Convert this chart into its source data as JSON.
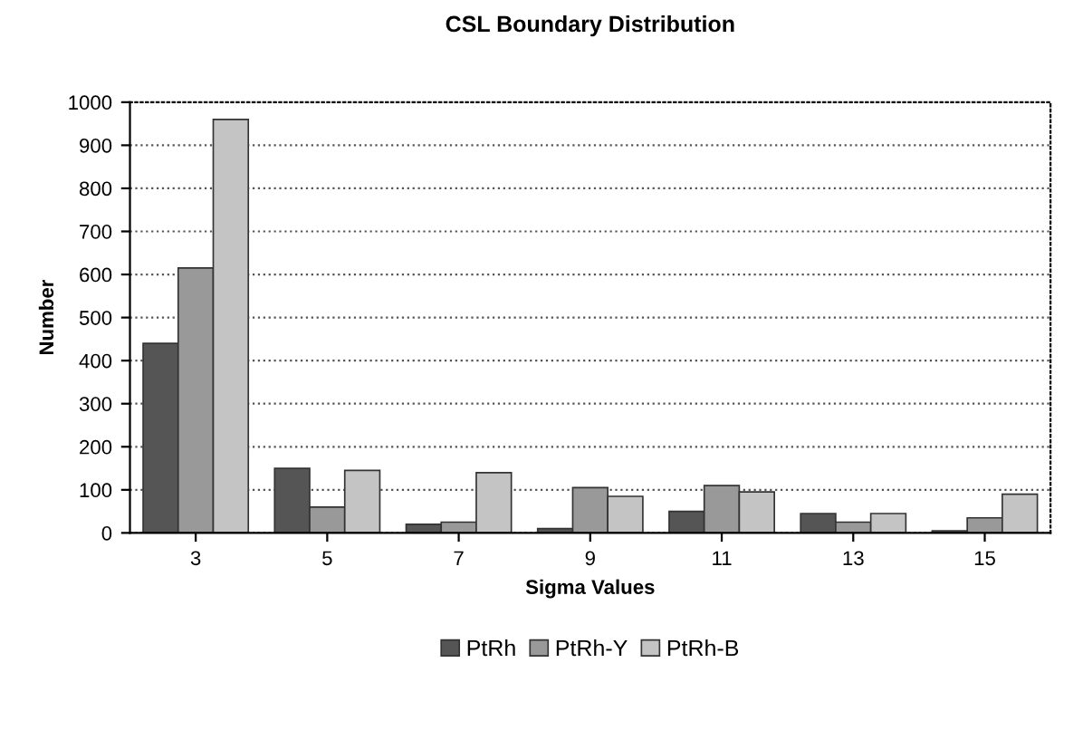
{
  "chart_data": {
    "type": "bar",
    "title": "CSL Boundary Distribution",
    "xlabel": "Sigma Values",
    "ylabel": "Number",
    "categories": [
      "3",
      "5",
      "7",
      "9",
      "11",
      "13",
      "15"
    ],
    "series": [
      {
        "name": "PtRh",
        "color": "#555555",
        "values": [
          440,
          150,
          20,
          10,
          50,
          45,
          5
        ]
      },
      {
        "name": "PtRh-Y",
        "color": "#999999",
        "values": [
          615,
          60,
          25,
          105,
          110,
          25,
          35
        ]
      },
      {
        "name": "PtRh-B",
        "color": "#c4c4c4",
        "values": [
          960,
          145,
          140,
          85,
          95,
          45,
          90
        ]
      }
    ],
    "ylim": [
      0,
      1000
    ],
    "yticks": [
      0,
      100,
      200,
      300,
      400,
      500,
      600,
      700,
      800,
      900,
      1000
    ],
    "grid": "y",
    "legend": "bottom"
  }
}
